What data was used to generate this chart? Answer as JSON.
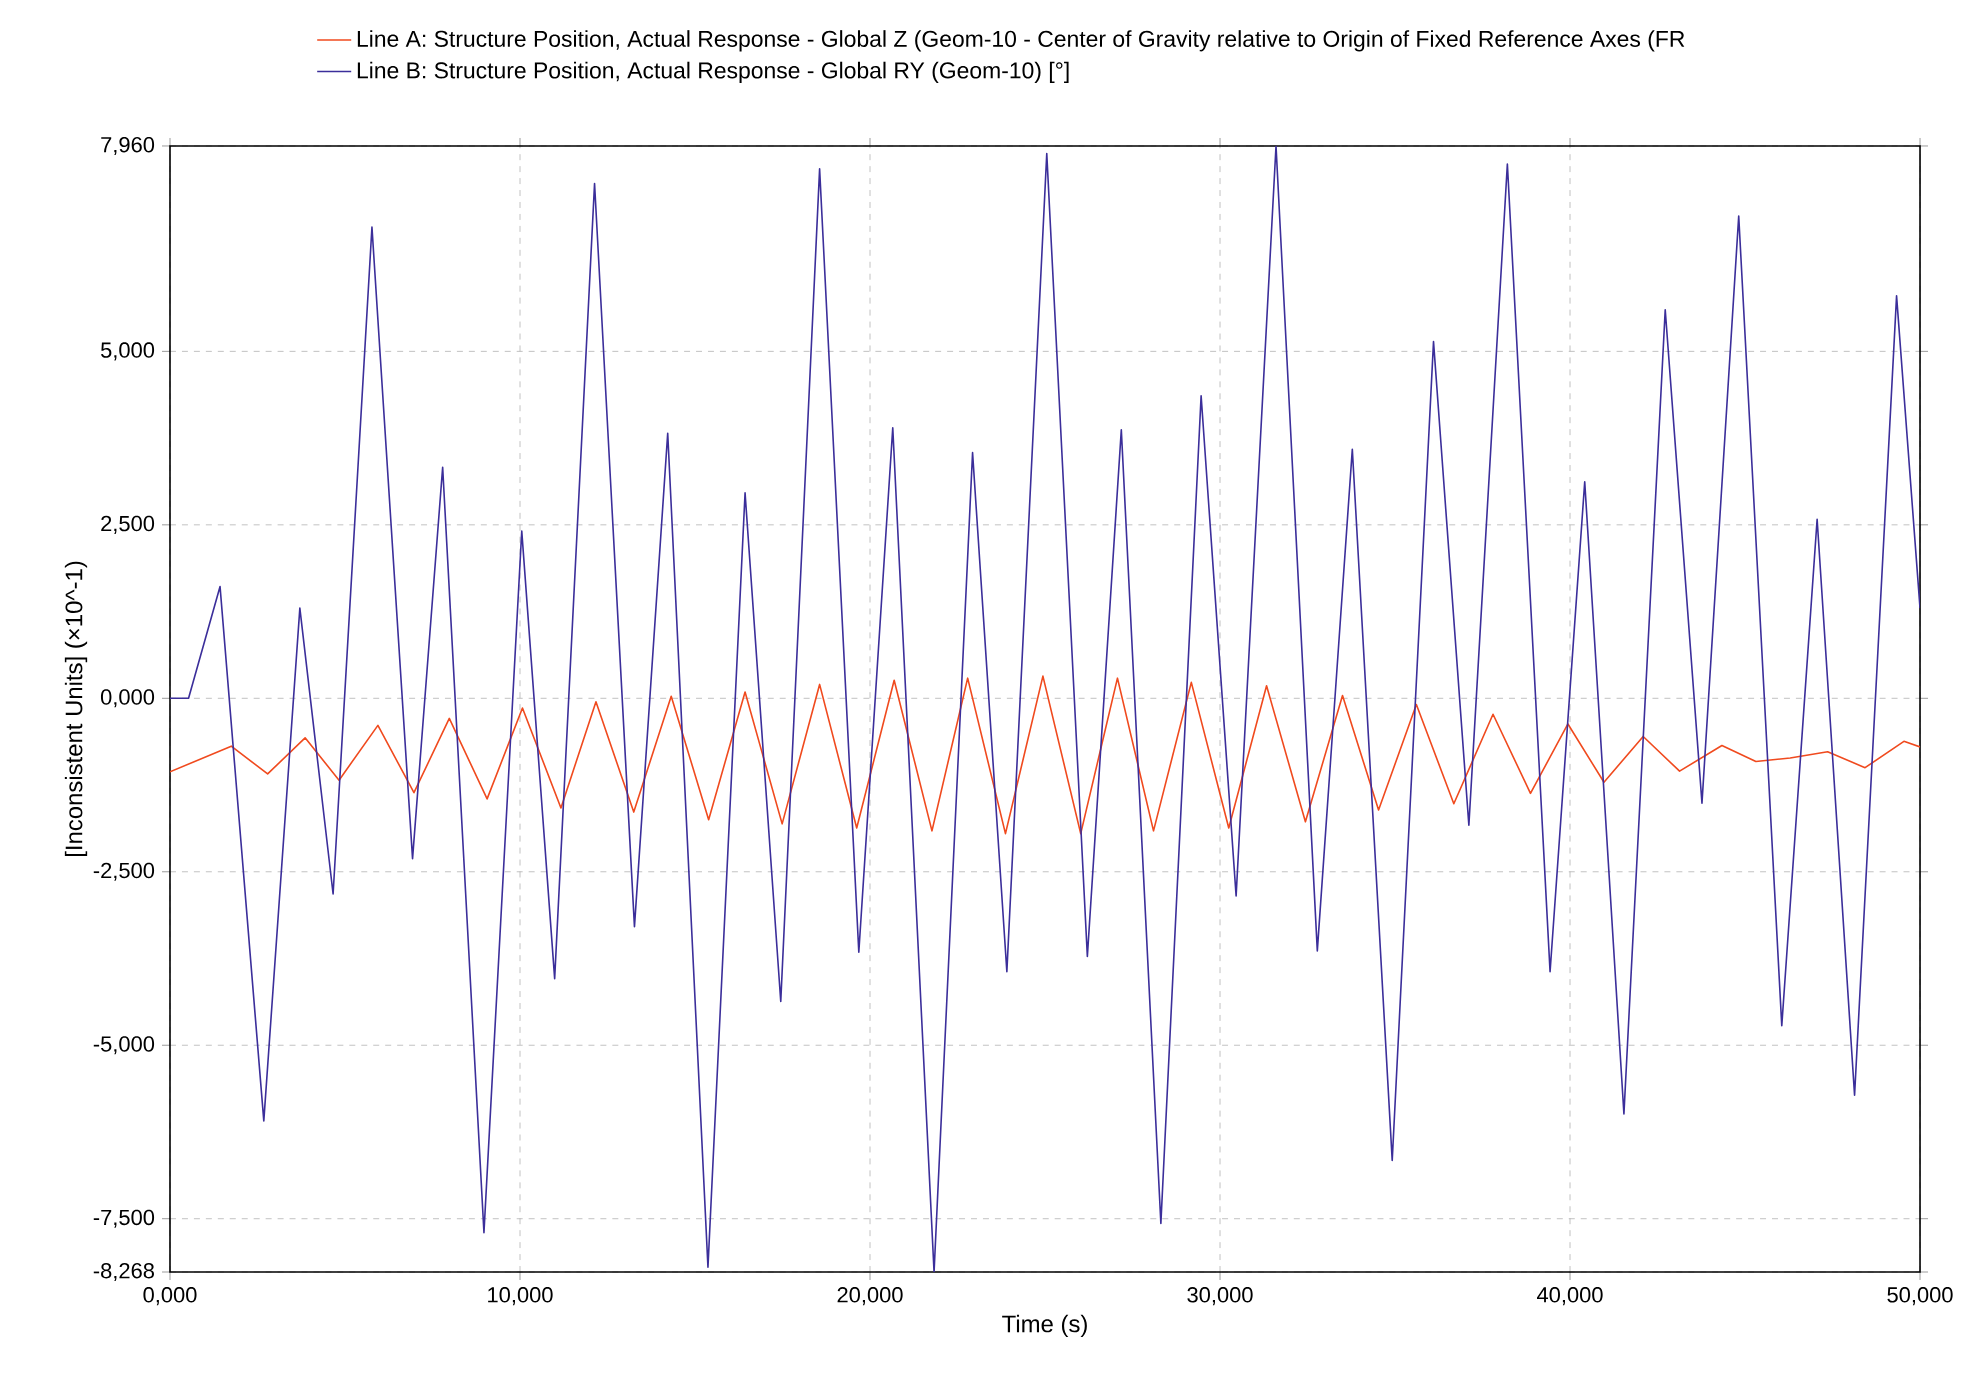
{
  "chart_data": {
    "type": "line",
    "xlabel": "Time (s)",
    "ylabel": "[Inconsistent Units] (×10^-1)",
    "xlim": [
      0,
      50
    ],
    "ylim": [
      -8.268,
      7.96
    ],
    "xticks": [
      {
        "value": 0,
        "label": "0,000"
      },
      {
        "value": 10,
        "label": "10,000"
      },
      {
        "value": 20,
        "label": "20,000"
      },
      {
        "value": 30,
        "label": "30,000"
      },
      {
        "value": 40,
        "label": "40,000"
      },
      {
        "value": 50,
        "label": "50,000"
      }
    ],
    "yticks": [
      {
        "value": -8.268,
        "label": "-8,268"
      },
      {
        "value": -7.5,
        "label": "-7,500"
      },
      {
        "value": -5,
        "label": "-5,000"
      },
      {
        "value": -2.5,
        "label": "-2,500"
      },
      {
        "value": 0,
        "label": "0,000"
      },
      {
        "value": 2.5,
        "label": "2,500"
      },
      {
        "value": 5,
        "label": "5,000"
      },
      {
        "value": 7.96,
        "label": "7,960"
      }
    ],
    "grid": true,
    "legend": "top",
    "series": [
      {
        "name": "Line A: Structure Position, Actual Response - Global Z (Geom-10 - Center of Gravity relative to Origin of Fixed Reference Axes (FR",
        "color": "#f04a1e",
        "x": [
          0,
          1.75,
          2.79,
          3.86,
          4.83,
          5.94,
          6.97,
          7.98,
          9.06,
          10.07,
          11.17,
          12.17,
          13.25,
          14.32,
          15.39,
          16.43,
          17.49,
          18.56,
          19.62,
          20.69,
          21.77,
          22.79,
          23.87,
          24.94,
          26.02,
          27.07,
          28.1,
          29.18,
          30.25,
          31.33,
          32.44,
          33.5,
          34.53,
          35.61,
          36.68,
          37.8,
          38.87,
          39.94,
          40.97,
          42.09,
          43.13,
          44.34,
          45.31,
          46.29,
          47.36,
          48.43,
          49.54,
          50
        ],
        "values": [
          -1.06,
          -0.69,
          -1.09,
          -0.57,
          -1.18,
          -0.39,
          -1.36,
          -0.29,
          -1.45,
          -0.14,
          -1.58,
          -0.05,
          -1.64,
          0.03,
          -1.75,
          0.09,
          -1.81,
          0.2,
          -1.87,
          0.26,
          -1.91,
          0.29,
          -1.95,
          0.32,
          -1.95,
          0.29,
          -1.91,
          0.23,
          -1.87,
          0.18,
          -1.78,
          0.04,
          -1.61,
          -0.09,
          -1.52,
          -0.23,
          -1.37,
          -0.37,
          -1.21,
          -0.55,
          -1.05,
          -0.68,
          -0.91,
          -0.86,
          -0.77,
          -1.0,
          -0.62,
          -0.7
        ]
      },
      {
        "name": "Line B: Structure Position, Actual Response - Global RY (Geom-10) [°]",
        "color": "#3b2e9a",
        "x": [
          0,
          0.53,
          1.43,
          2.68,
          3.71,
          4.66,
          5.77,
          6.93,
          7.79,
          8.97,
          10.05,
          10.99,
          12.13,
          13.27,
          14.22,
          15.37,
          16.43,
          17.45,
          18.56,
          19.68,
          20.65,
          21.83,
          22.93,
          23.91,
          25.05,
          26.21,
          27.18,
          28.31,
          29.46,
          30.46,
          31.6,
          32.78,
          33.78,
          34.92,
          36.1,
          37.11,
          38.21,
          39.43,
          40.42,
          41.54,
          42.72,
          43.77,
          44.82,
          46.05,
          47.06,
          48.13,
          49.33,
          50
        ],
        "values": [
          0,
          0,
          1.61,
          -6.09,
          1.3,
          -2.82,
          6.79,
          -2.31,
          3.33,
          -7.7,
          2.41,
          -4.04,
          7.42,
          -3.29,
          3.82,
          -8.2,
          2.96,
          -4.37,
          7.63,
          -3.66,
          3.9,
          -8.268,
          3.54,
          -3.94,
          7.85,
          -3.72,
          3.87,
          -7.57,
          4.36,
          -2.85,
          7.96,
          -3.64,
          3.59,
          -6.66,
          5.14,
          -1.83,
          7.7,
          -3.94,
          3.12,
          -5.99,
          5.6,
          -1.51,
          6.95,
          -4.72,
          2.58,
          -5.72,
          5.8,
          1.3
        ]
      }
    ]
  }
}
